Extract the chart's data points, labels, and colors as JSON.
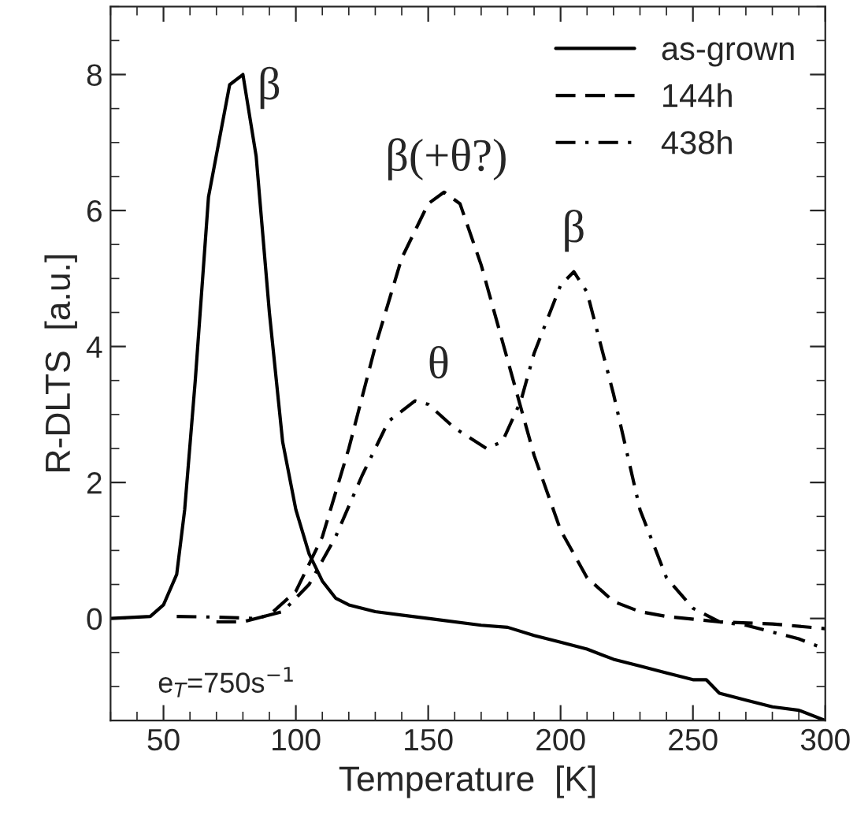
{
  "chart_data": {
    "type": "line",
    "xlabel": "Temperature  [K]",
    "ylabel": "R-DLTS  [a.u.]",
    "xlim": [
      30,
      300
    ],
    "xticks": [
      50,
      100,
      150,
      200,
      250,
      300
    ],
    "ylim": [
      -1.5,
      9
    ],
    "yticks": [
      0,
      2,
      4,
      6,
      8
    ],
    "grid": false,
    "legend": "top right",
    "marker": "none",
    "series": [
      {
        "name": "as-grown",
        "color": "#000000",
        "line_style": "solid",
        "x": [
          30,
          45,
          50,
          55,
          58,
          62,
          67,
          75,
          80,
          85,
          90,
          95,
          100,
          105,
          110,
          115,
          120,
          130,
          150,
          170,
          180,
          190,
          200,
          210,
          220,
          230,
          240,
          250,
          255,
          260,
          270,
          280,
          290,
          300
        ],
        "values": [
          0,
          0.03,
          0.2,
          0.65,
          1.6,
          3.5,
          6.2,
          7.85,
          8.0,
          6.8,
          4.5,
          2.6,
          1.6,
          0.95,
          0.55,
          0.3,
          0.2,
          0.1,
          0.0,
          -0.1,
          -0.13,
          -0.25,
          -0.35,
          -0.45,
          -0.6,
          -0.7,
          -0.8,
          -0.9,
          -0.9,
          -1.1,
          -1.2,
          -1.3,
          -1.35,
          -1.5
        ]
      },
      {
        "name": "144h",
        "color": "#000000",
        "line_style": "dashed",
        "x": [
          70,
          80,
          90,
          100,
          110,
          120,
          130,
          140,
          150,
          156,
          162,
          170,
          180,
          190,
          200,
          210,
          220,
          230,
          240,
          260,
          280,
          300
        ],
        "values": [
          -0.05,
          -0.05,
          0.05,
          0.4,
          1.2,
          2.5,
          4.0,
          5.3,
          6.1,
          6.27,
          6.1,
          5.2,
          3.8,
          2.4,
          1.3,
          0.6,
          0.25,
          0.1,
          0.03,
          -0.05,
          -0.08,
          -0.15
        ]
      },
      {
        "name": "438h",
        "color": "#000000",
        "line_style": "dashdot",
        "x": [
          55,
          70,
          85,
          95,
          105,
          115,
          125,
          135,
          145,
          150,
          160,
          172,
          178,
          185,
          190,
          200,
          205,
          210,
          220,
          230,
          240,
          250,
          260,
          270,
          280,
          290,
          300
        ],
        "values": [
          0.03,
          0.02,
          0.0,
          0.1,
          0.5,
          1.2,
          2.1,
          2.9,
          3.2,
          3.15,
          2.8,
          2.5,
          2.6,
          3.2,
          3.9,
          4.9,
          5.1,
          4.8,
          3.3,
          1.6,
          0.6,
          0.15,
          -0.05,
          -0.1,
          -0.2,
          -0.3,
          -0.45
        ]
      }
    ],
    "annotations": [
      "β",
      "β(+θ?)",
      "β",
      "θ",
      "e$_{T}$=750s$^{−1}$"
    ]
  }
}
